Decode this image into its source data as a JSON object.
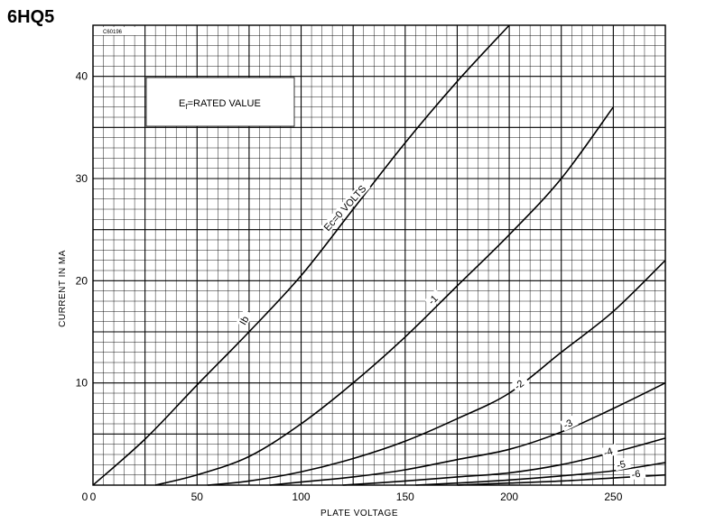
{
  "title": "6HQ5",
  "code": "C60196",
  "chart_data": {
    "type": "line",
    "title": "6HQ5",
    "xlabel": "PLATE VOLTAGE",
    "ylabel": "CURRENT IN MA",
    "xlim": [
      0,
      275
    ],
    "ylim": [
      0,
      45
    ],
    "x_ticks": [
      0,
      50,
      100,
      150,
      200,
      250
    ],
    "y_ticks": [
      10,
      20,
      30,
      40
    ],
    "grid": true,
    "legend_box": {
      "text_prefix": "E",
      "text_sub": "f",
      "text_rest": "=RATED VALUE",
      "position": "top-left"
    },
    "curve_label_ib": "Ib",
    "series": [
      {
        "name": "Ec=0 VOLTS",
        "label": "Ec=0 VOLTS",
        "x": [
          0,
          25,
          50,
          75,
          100,
          125,
          150,
          175,
          200
        ],
        "y": [
          0,
          4.5,
          9.8,
          15,
          20.5,
          27,
          33.5,
          39.5,
          45
        ]
      },
      {
        "name": "-1",
        "label": "-1",
        "x": [
          30,
          50,
          75,
          100,
          125,
          150,
          175,
          200,
          225,
          250
        ],
        "y": [
          0,
          1,
          2.8,
          6,
          10,
          14.5,
          19.5,
          24.5,
          30,
          37
        ]
      },
      {
        "name": "-2",
        "label": "-2",
        "x": [
          55,
          75,
          100,
          125,
          150,
          175,
          200,
          225,
          250,
          275
        ],
        "y": [
          0,
          0.4,
          1.3,
          2.6,
          4.3,
          6.5,
          9,
          13,
          17,
          22
        ]
      },
      {
        "name": "-3",
        "label": "-3",
        "x": [
          85,
          100,
          125,
          150,
          175,
          200,
          225,
          250,
          275
        ],
        "y": [
          0,
          0.3,
          0.8,
          1.5,
          2.5,
          3.5,
          5.2,
          7.5,
          10
        ]
      },
      {
        "name": "-4",
        "label": "-4",
        "x": [
          120,
          150,
          175,
          200,
          225,
          250,
          275
        ],
        "y": [
          0,
          0.4,
          0.8,
          1.2,
          2,
          3.2,
          4.6
        ]
      },
      {
        "name": "-5",
        "label": "-5",
        "x": [
          155,
          175,
          200,
          225,
          250,
          275
        ],
        "y": [
          0,
          0.2,
          0.5,
          0.9,
          1.4,
          2.2
        ]
      },
      {
        "name": "-6",
        "label": "-6",
        "x": [
          175,
          200,
          225,
          250,
          275
        ],
        "y": [
          0,
          0.2,
          0.4,
          0.7,
          1
        ]
      }
    ]
  }
}
